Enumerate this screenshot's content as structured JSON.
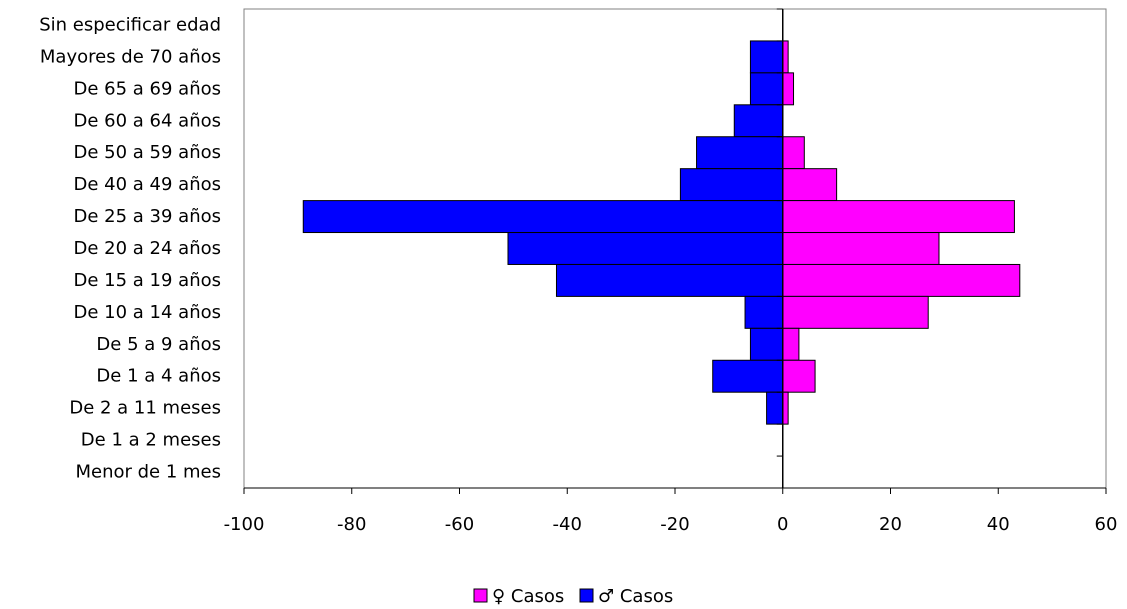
{
  "chart_data": {
    "type": "bar",
    "orientation": "horizontal",
    "title": "",
    "xlabel": "",
    "ylabel": "",
    "categories": [
      "Sin especificar edad",
      "Mayores de 70 años",
      "De 65 a 69 años",
      "De 60 a 64 años",
      "De 50 a 59 años",
      "De 40 a 49 años",
      "De 25 a 39 años",
      "De 20 a 24 años",
      "De 15 a 19 años",
      "De 10 a 14 años",
      "De 5 a 9 años",
      "De 1 a 4 años",
      "De 2 a 11 meses",
      "De 1 a 2 meses",
      "Menor de 1 mes"
    ],
    "series": [
      {
        "name": "♀ Casos",
        "color": "#ff00ff",
        "values": [
          0,
          1,
          2,
          0,
          4,
          10,
          43,
          29,
          44,
          27,
          3,
          6,
          1,
          0,
          0
        ]
      },
      {
        "name": "♂ Casos",
        "color": "#0000ff",
        "values": [
          0,
          -6,
          -6,
          -9,
          -16,
          -19,
          -89,
          -51,
          -42,
          -7,
          -6,
          -13,
          -3,
          0,
          0
        ]
      }
    ],
    "xlim": [
      -100,
      60
    ],
    "xticks": [
      -100,
      -80,
      -60,
      -40,
      -20,
      0,
      20,
      40,
      60
    ],
    "grid": false,
    "legend_position": "bottom"
  }
}
